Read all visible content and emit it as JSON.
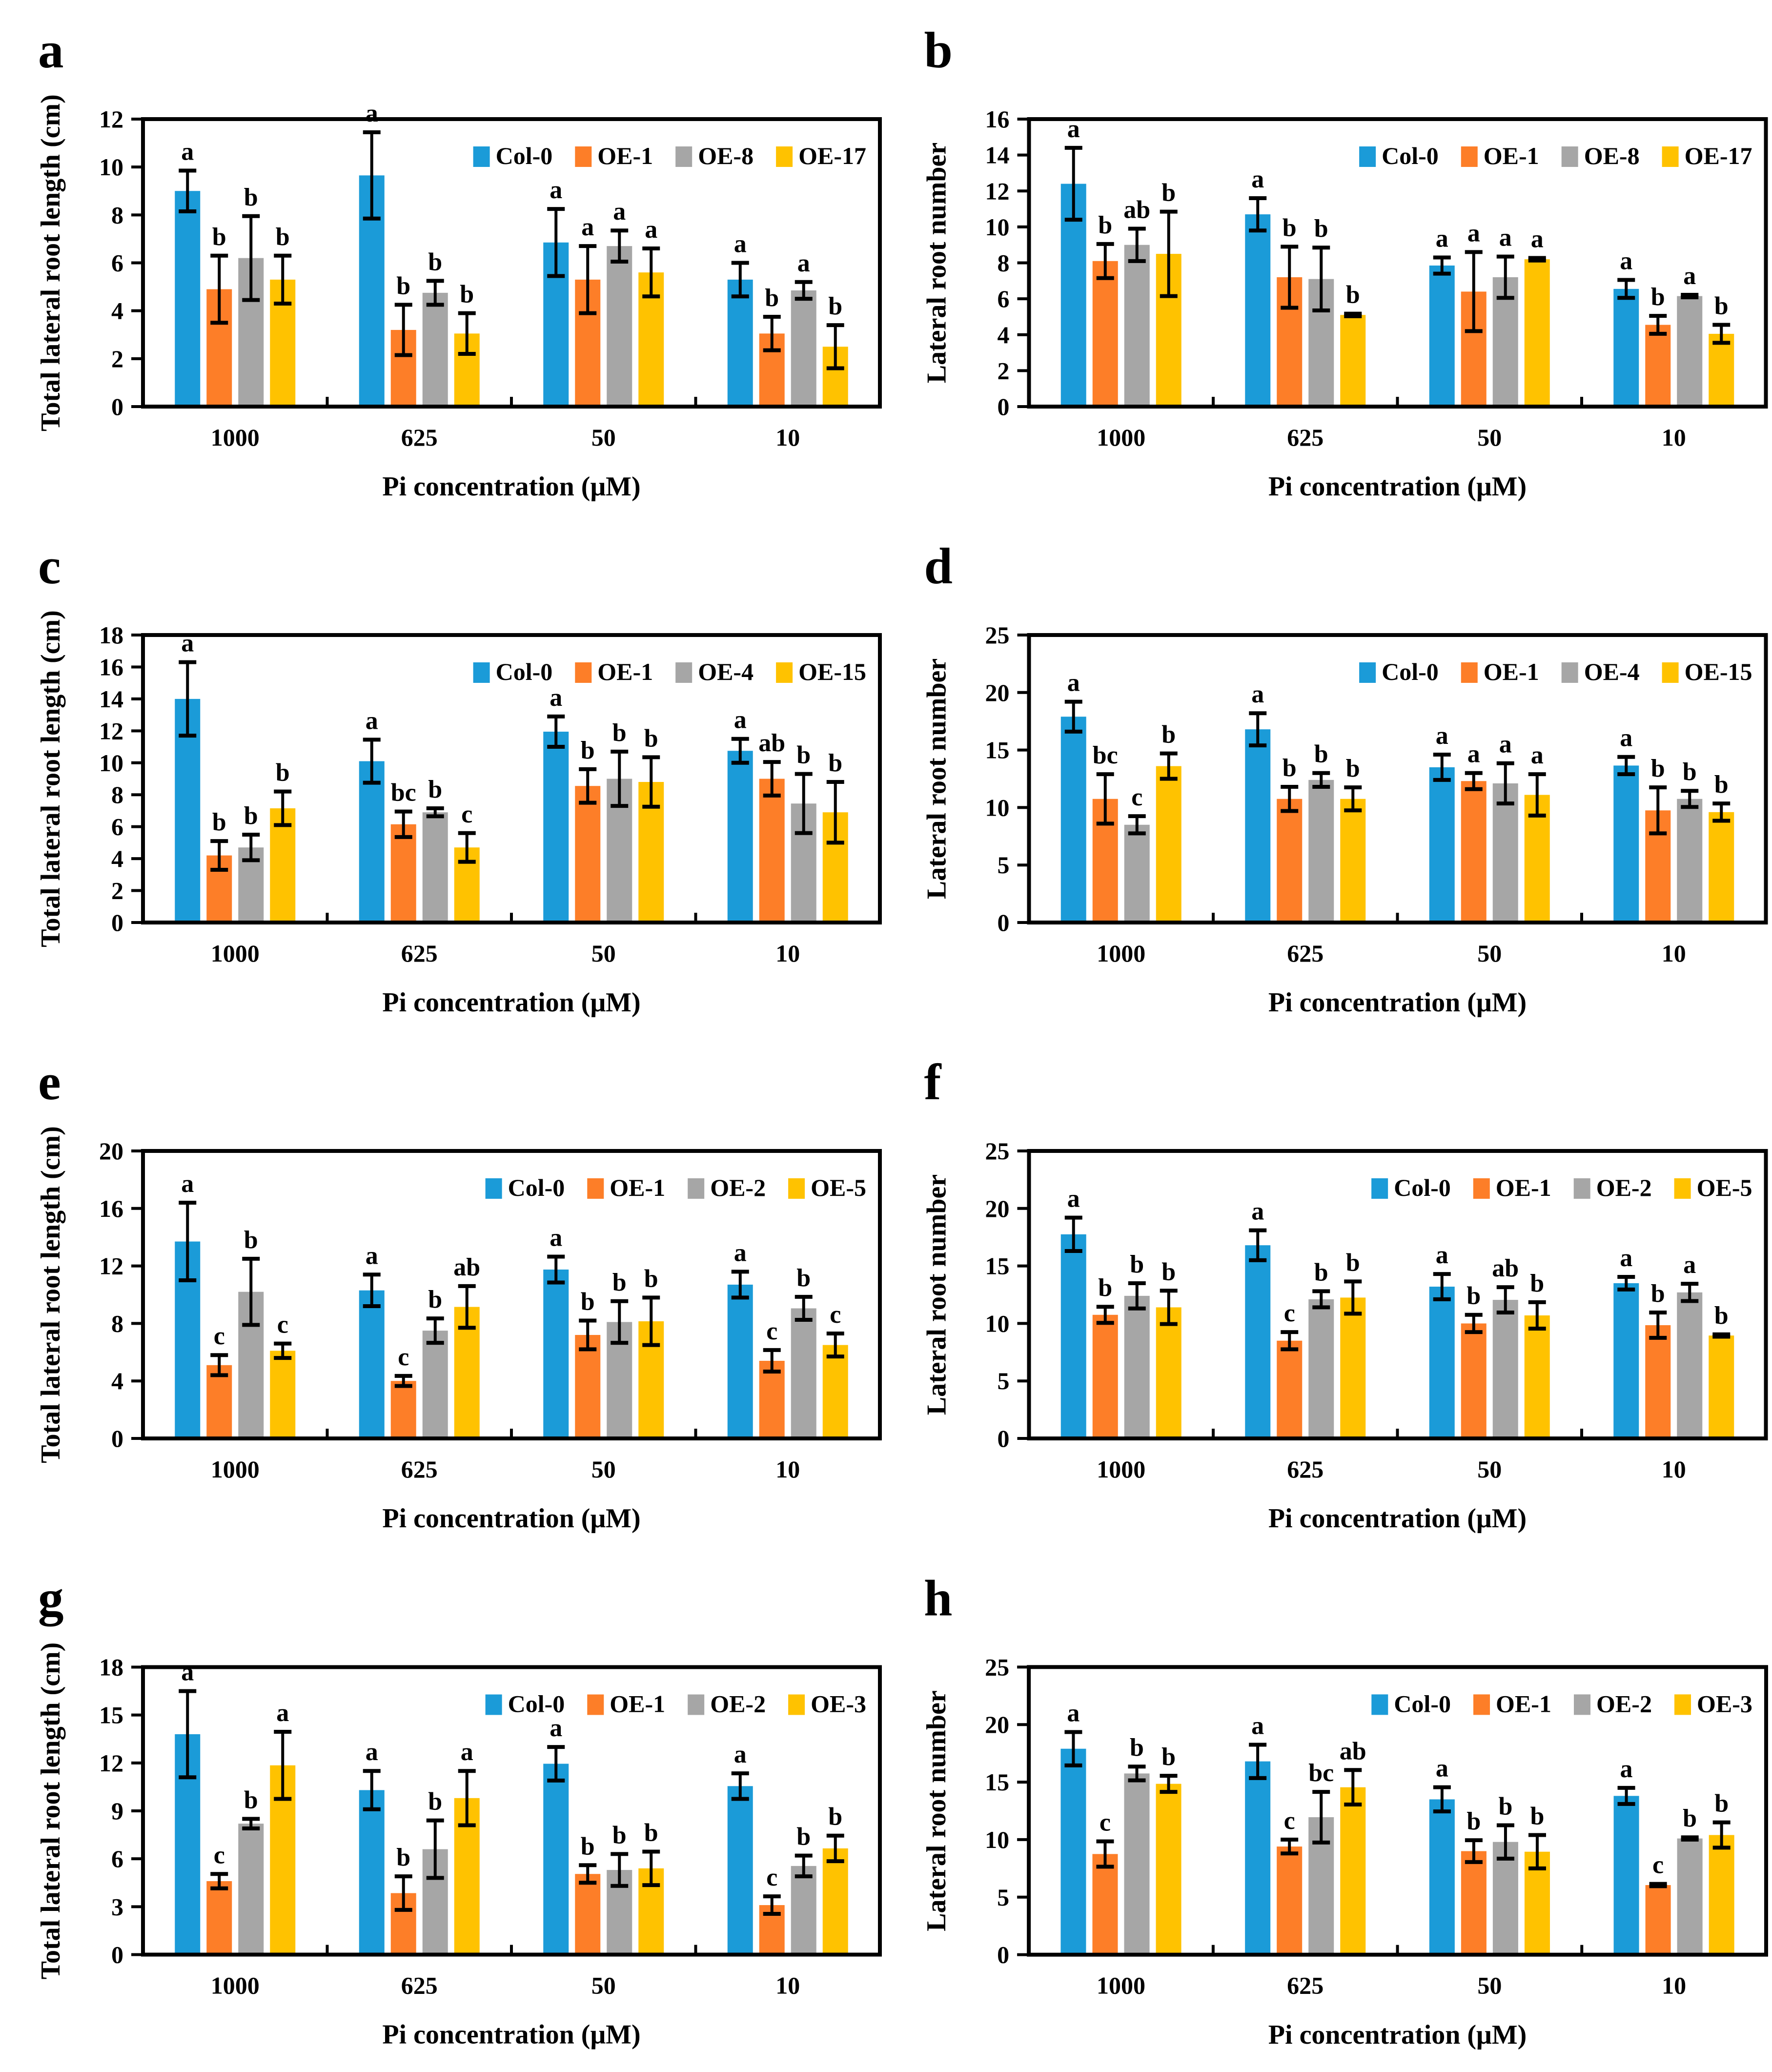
{
  "figure": {
    "xlabel": "Pi concentration (μM)",
    "categories": [
      "1000",
      "625",
      "50",
      "10"
    ],
    "palette": {
      "blue": "#1b9bd8",
      "orange": "#fd7e28",
      "gray": "#a6a6a6",
      "yellow": "#ffc200",
      "axis": "#000000",
      "background": "#ffffff"
    }
  },
  "chart_data": [
    {
      "panel_label": "a",
      "type": "bar",
      "ylabel": "Total lateral root length (cm)",
      "xlabel": "Pi concentration (μM)",
      "categories": [
        "1000",
        "625",
        "50",
        "10"
      ],
      "ylim": [
        0,
        12
      ],
      "ytick_step": 2,
      "legend_position": "top-right",
      "series": [
        {
          "name": "Col-0",
          "color": "#1b9bd8",
          "values": [
            9.0,
            9.65,
            6.85,
            5.3
          ],
          "errors": [
            0.85,
            1.8,
            1.4,
            0.7
          ],
          "letters": [
            "a",
            "a",
            "a",
            "a"
          ]
        },
        {
          "name": "OE-1",
          "color": "#fd7e28",
          "values": [
            4.9,
            3.2,
            5.3,
            3.05
          ],
          "errors": [
            1.4,
            1.05,
            1.4,
            0.7
          ],
          "letters": [
            "b",
            "b",
            "a",
            "b"
          ]
        },
        {
          "name": "OE-8",
          "color": "#a6a6a6",
          "values": [
            6.2,
            4.75,
            6.7,
            4.85
          ],
          "errors": [
            1.75,
            0.5,
            0.65,
            0.35
          ],
          "letters": [
            "b",
            "b",
            "a",
            "a"
          ]
        },
        {
          "name": "OE-17",
          "color": "#ffc200",
          "values": [
            5.3,
            3.05,
            5.6,
            2.5
          ],
          "errors": [
            1.0,
            0.85,
            1.0,
            0.9
          ],
          "letters": [
            "b",
            "b",
            "a",
            "b"
          ]
        }
      ]
    },
    {
      "panel_label": "b",
      "type": "bar",
      "ylabel": "Lateral root number",
      "xlabel": "Pi concentration (μM)",
      "categories": [
        "1000",
        "625",
        "50",
        "10"
      ],
      "ylim": [
        0,
        16
      ],
      "ytick_step": 2,
      "legend_position": "top-right",
      "series": [
        {
          "name": "Col-0",
          "color": "#1b9bd8",
          "values": [
            12.4,
            10.7,
            7.85,
            6.55
          ],
          "errors": [
            2.0,
            0.9,
            0.45,
            0.5
          ],
          "letters": [
            "a",
            "a",
            "a",
            "a"
          ]
        },
        {
          "name": "OE-1",
          "color": "#fd7e28",
          "values": [
            8.1,
            7.2,
            6.4,
            4.55
          ],
          "errors": [
            0.95,
            1.7,
            2.2,
            0.5
          ],
          "letters": [
            "b",
            "b",
            "a",
            "b"
          ]
        },
        {
          "name": "OE-8",
          "color": "#a6a6a6",
          "values": [
            9.0,
            7.1,
            7.2,
            6.15
          ],
          "errors": [
            0.9,
            1.75,
            1.15,
            0.07
          ],
          "letters": [
            "ab",
            "b",
            "a",
            "a"
          ]
        },
        {
          "name": "OE-17",
          "color": "#ffc200",
          "values": [
            8.5,
            5.1,
            8.2,
            4.05
          ],
          "errors": [
            2.35,
            0.07,
            0.07,
            0.5
          ],
          "letters": [
            "b",
            "b",
            "a",
            "b"
          ]
        }
      ]
    },
    {
      "panel_label": "c",
      "type": "bar",
      "ylabel": "Total lateral root length (cm)",
      "xlabel": "Pi concentration (μM)",
      "categories": [
        "1000",
        "625",
        "50",
        "10"
      ],
      "ylim": [
        0,
        18
      ],
      "ytick_step": 2,
      "legend_position": "top-right",
      "series": [
        {
          "name": "Col-0",
          "color": "#1b9bd8",
          "values": [
            14.0,
            10.1,
            11.95,
            10.75
          ],
          "errors": [
            2.3,
            1.35,
            0.95,
            0.75
          ],
          "letters": [
            "a",
            "a",
            "a",
            "a"
          ]
        },
        {
          "name": "OE-1",
          "color": "#fd7e28",
          "values": [
            4.2,
            6.15,
            8.55,
            9.0
          ],
          "errors": [
            0.9,
            0.8,
            1.05,
            1.05
          ],
          "letters": [
            "b",
            "bc",
            "b",
            "ab"
          ]
        },
        {
          "name": "OE-4",
          "color": "#a6a6a6",
          "values": [
            4.7,
            6.9,
            9.0,
            7.45
          ],
          "errors": [
            0.8,
            0.25,
            1.7,
            1.85
          ],
          "letters": [
            "b",
            "b",
            "b",
            "b"
          ]
        },
        {
          "name": "OE-15",
          "color": "#ffc200",
          "values": [
            7.15,
            4.7,
            8.8,
            6.9
          ],
          "errors": [
            1.05,
            0.9,
            1.55,
            1.9
          ],
          "letters": [
            "b",
            "c",
            "b",
            "b"
          ]
        }
      ]
    },
    {
      "panel_label": "d",
      "type": "bar",
      "ylabel": "Lateral root number",
      "xlabel": "Pi concentration (μM)",
      "categories": [
        "1000",
        "625",
        "50",
        "10"
      ],
      "ylim": [
        0,
        25
      ],
      "ytick_step": 5,
      "legend_position": "top-right",
      "series": [
        {
          "name": "Col-0",
          "color": "#1b9bd8",
          "values": [
            17.9,
            16.8,
            13.5,
            13.65
          ],
          "errors": [
            1.3,
            1.4,
            1.1,
            0.75
          ],
          "letters": [
            "a",
            "a",
            "a",
            "a"
          ]
        },
        {
          "name": "OE-1",
          "color": "#fd7e28",
          "values": [
            10.75,
            10.75,
            12.3,
            9.75
          ],
          "errors": [
            2.15,
            1.05,
            0.7,
            2.0
          ],
          "letters": [
            "bc",
            "b",
            "a",
            "b"
          ]
        },
        {
          "name": "OE-4",
          "color": "#a6a6a6",
          "values": [
            8.5,
            12.4,
            12.1,
            10.75
          ],
          "errors": [
            0.75,
            0.6,
            1.75,
            0.7
          ],
          "letters": [
            "c",
            "b",
            "a",
            "b"
          ]
        },
        {
          "name": "OE-15",
          "color": "#ffc200",
          "values": [
            13.6,
            10.75,
            11.1,
            9.6
          ],
          "errors": [
            1.1,
            1.0,
            1.8,
            0.75
          ],
          "letters": [
            "b",
            "b",
            "a",
            "b"
          ]
        }
      ]
    },
    {
      "panel_label": "e",
      "type": "bar",
      "ylabel": "Total lateral root length (cm)",
      "xlabel": "Pi concentration (μM)",
      "categories": [
        "1000",
        "625",
        "50",
        "10"
      ],
      "ylim": [
        0,
        20
      ],
      "ytick_step": 4,
      "legend_position": "top-right",
      "series": [
        {
          "name": "Col-0",
          "color": "#1b9bd8",
          "values": [
            13.7,
            10.3,
            11.75,
            10.7
          ],
          "errors": [
            2.7,
            1.1,
            0.9,
            0.9
          ],
          "letters": [
            "a",
            "a",
            "a",
            "a"
          ]
        },
        {
          "name": "OE-1",
          "color": "#fd7e28",
          "values": [
            5.1,
            4.0,
            7.2,
            5.4
          ],
          "errors": [
            0.7,
            0.35,
            1.0,
            0.75
          ],
          "letters": [
            "c",
            "c",
            "b",
            "c"
          ]
        },
        {
          "name": "OE-2",
          "color": "#a6a6a6",
          "values": [
            10.2,
            7.5,
            8.1,
            9.05
          ],
          "errors": [
            2.3,
            0.85,
            1.45,
            0.8
          ],
          "letters": [
            "b",
            "b",
            "b",
            "b"
          ]
        },
        {
          "name": "OE-5",
          "color": "#ffc200",
          "values": [
            6.1,
            9.15,
            8.15,
            6.5
          ],
          "errors": [
            0.5,
            1.45,
            1.65,
            0.8
          ],
          "letters": [
            "c",
            "ab",
            "b",
            "c"
          ]
        }
      ]
    },
    {
      "panel_label": "f",
      "type": "bar",
      "ylabel": "Lateral root number",
      "xlabel": "Pi concentration (μM)",
      "categories": [
        "1000",
        "625",
        "50",
        "10"
      ],
      "ylim": [
        0,
        25
      ],
      "ytick_step": 5,
      "legend_position": "top-right",
      "series": [
        {
          "name": "Col-0",
          "color": "#1b9bd8",
          "values": [
            17.75,
            16.8,
            13.2,
            13.5
          ],
          "errors": [
            1.45,
            1.3,
            1.1,
            0.55
          ],
          "letters": [
            "a",
            "a",
            "a",
            "a"
          ]
        },
        {
          "name": "OE-1",
          "color": "#fd7e28",
          "values": [
            10.75,
            8.5,
            10.0,
            9.85
          ],
          "errors": [
            0.7,
            0.75,
            0.75,
            1.1
          ],
          "letters": [
            "b",
            "c",
            "b",
            "b"
          ]
        },
        {
          "name": "OE-2",
          "color": "#a6a6a6",
          "values": [
            12.4,
            12.1,
            12.05,
            12.7
          ],
          "errors": [
            1.1,
            0.7,
            1.1,
            0.75
          ],
          "letters": [
            "b",
            "b",
            "ab",
            "a"
          ]
        },
        {
          "name": "OE-5",
          "color": "#ffc200",
          "values": [
            11.4,
            12.25,
            10.7,
            8.95
          ],
          "errors": [
            1.45,
            1.4,
            1.15,
            0.1
          ],
          "letters": [
            "b",
            "b",
            "b",
            "b"
          ]
        }
      ]
    },
    {
      "panel_label": "g",
      "type": "bar",
      "ylabel": "Total lateral root length (cm)",
      "xlabel": "Pi concentration (μM)",
      "categories": [
        "1000",
        "625",
        "50",
        "10"
      ],
      "ylim": [
        0,
        18
      ],
      "ytick_step": 3,
      "legend_position": "top-right",
      "series": [
        {
          "name": "Col-0",
          "color": "#1b9bd8",
          "values": [
            13.8,
            10.3,
            11.95,
            10.55
          ],
          "errors": [
            2.7,
            1.2,
            1.05,
            0.8
          ],
          "letters": [
            "a",
            "a",
            "a",
            "a"
          ]
        },
        {
          "name": "OE-1",
          "color": "#fd7e28",
          "values": [
            4.6,
            3.85,
            5.05,
            3.1
          ],
          "errors": [
            0.45,
            1.05,
            0.55,
            0.55
          ],
          "letters": [
            "c",
            "b",
            "b",
            "c"
          ]
        },
        {
          "name": "OE-2",
          "color": "#a6a6a6",
          "values": [
            8.2,
            6.6,
            5.3,
            5.55
          ],
          "errors": [
            0.3,
            1.8,
            1.0,
            0.65
          ],
          "letters": [
            "b",
            "b",
            "b",
            "b"
          ]
        },
        {
          "name": "OE-3",
          "color": "#ffc200",
          "values": [
            11.85,
            9.8,
            5.4,
            6.65
          ],
          "errors": [
            2.1,
            1.7,
            1.05,
            0.8
          ],
          "letters": [
            "a",
            "a",
            "b",
            "b"
          ]
        }
      ]
    },
    {
      "panel_label": "h",
      "type": "bar",
      "ylabel": "Lateral root number",
      "xlabel": "Pi concentration (μM)",
      "categories": [
        "1000",
        "625",
        "50",
        "10"
      ],
      "ylim": [
        0,
        25
      ],
      "ytick_step": 5,
      "legend_position": "top-right",
      "series": [
        {
          "name": "Col-0",
          "color": "#1b9bd8",
          "values": [
            17.9,
            16.8,
            13.5,
            13.8
          ],
          "errors": [
            1.45,
            1.45,
            1.05,
            0.7
          ],
          "letters": [
            "a",
            "a",
            "a",
            "a"
          ]
        },
        {
          "name": "OE-1",
          "color": "#fd7e28",
          "values": [
            8.75,
            9.4,
            9.0,
            6.05
          ],
          "errors": [
            1.1,
            0.6,
            0.95,
            0.1
          ],
          "letters": [
            "c",
            "c",
            "b",
            "c"
          ]
        },
        {
          "name": "OE-2",
          "color": "#a6a6a6",
          "values": [
            15.75,
            11.95,
            9.8,
            10.1
          ],
          "errors": [
            0.6,
            2.2,
            1.45,
            0.1
          ],
          "letters": [
            "b",
            "bc",
            "b",
            "b"
          ]
        },
        {
          "name": "OE-3",
          "color": "#ffc200",
          "values": [
            14.85,
            14.55,
            8.95,
            10.4
          ],
          "errors": [
            0.7,
            1.5,
            1.45,
            1.1
          ],
          "letters": [
            "b",
            "ab",
            "b",
            "b"
          ]
        }
      ]
    }
  ]
}
